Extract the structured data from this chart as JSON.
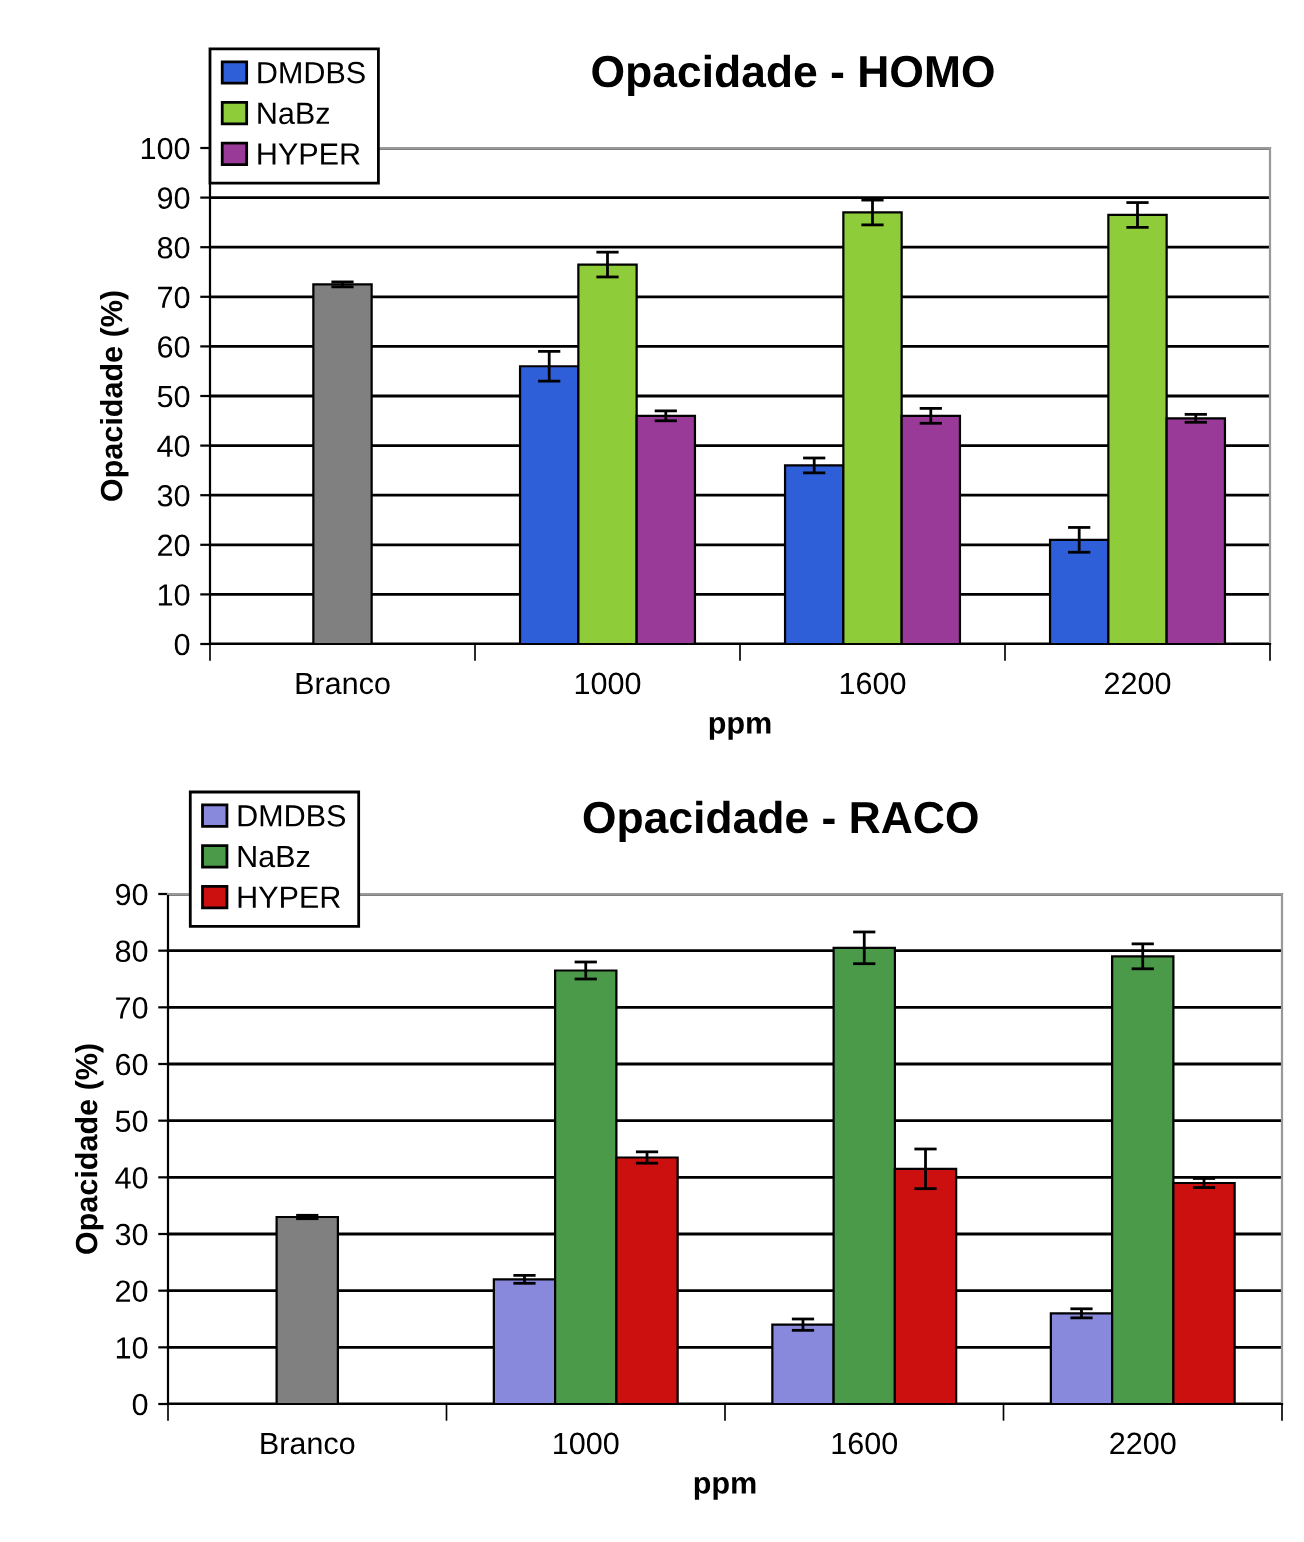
{
  "chart_data": [
    {
      "type": "bar",
      "title": "Opacidade - HOMO",
      "xlabel": "ppm",
      "ylabel": "Opacidade (%)",
      "categories": [
        "Branco",
        "1000",
        "1600",
        "2200"
      ],
      "ylim": [
        0,
        100
      ],
      "yticks": [
        0,
        10,
        20,
        30,
        40,
        50,
        60,
        70,
        80,
        90,
        100
      ],
      "grid": "y",
      "legend": "top left",
      "series": [
        {
          "color": "#808080",
          "values": [
            72.5,
            null,
            null,
            null
          ],
          "errors": [
            0.5,
            null,
            null,
            null
          ]
        },
        {
          "name": "DMDBS",
          "color": "#2f5fd8",
          "values": [
            null,
            56,
            36,
            21
          ],
          "errors": [
            null,
            3,
            1.5,
            2.5
          ]
        },
        {
          "name": "NaBz",
          "color": "#8fcc3a",
          "values": [
            null,
            76.5,
            87,
            86.5
          ],
          "errors": [
            null,
            2.5,
            2.5,
            2.5
          ]
        },
        {
          "name": "HYPER",
          "color": "#9a3a98",
          "values": [
            null,
            46,
            46,
            45.5
          ],
          "errors": [
            null,
            1,
            1.5,
            0.8
          ]
        }
      ]
    },
    {
      "type": "bar",
      "title": "Opacidade - RACO",
      "xlabel": "ppm",
      "ylabel": "Opacidade (%)",
      "categories": [
        "Branco",
        "1000",
        "1600",
        "2200"
      ],
      "ylim": [
        0,
        90
      ],
      "yticks": [
        0,
        10,
        20,
        30,
        40,
        50,
        60,
        70,
        80,
        90
      ],
      "grid": "y",
      "legend": "top left",
      "series": [
        {
          "color": "#808080",
          "values": [
            33,
            null,
            null,
            null
          ],
          "errors": [
            0.3,
            null,
            null,
            null
          ]
        },
        {
          "name": "DMDBS",
          "color": "#8888dd",
          "values": [
            null,
            22,
            14,
            16
          ],
          "errors": [
            null,
            0.7,
            1,
            0.8
          ]
        },
        {
          "name": "NaBz",
          "color": "#4a9a4a",
          "values": [
            null,
            76.5,
            80.5,
            79
          ],
          "errors": [
            null,
            1.5,
            2.8,
            2.2
          ]
        },
        {
          "name": "HYPER",
          "color": "#cc1010",
          "values": [
            null,
            43.5,
            41.5,
            39
          ],
          "errors": [
            null,
            1,
            3.5,
            0.8
          ]
        }
      ]
    }
  ]
}
